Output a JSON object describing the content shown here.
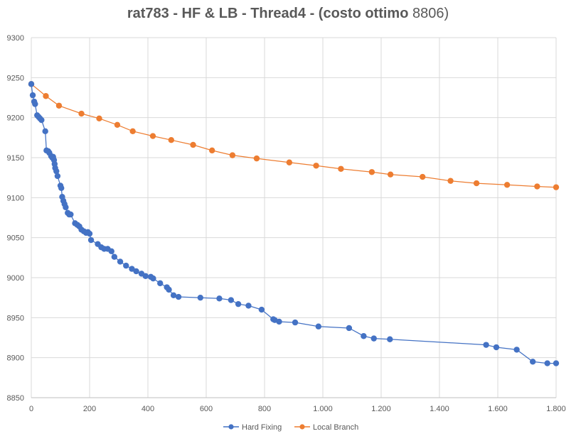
{
  "chart_data": {
    "type": "scatter",
    "title": "rat783 - HF & LB - Thread4 - (costo ottimo",
    "title_value": "8806)",
    "xlabel": "",
    "ylabel": "",
    "xlim": [
      0,
      1800
    ],
    "ylim": [
      8850,
      9300
    ],
    "x_ticks": [
      0,
      200,
      400,
      600,
      800,
      1000,
      1200,
      1400,
      1600,
      1800
    ],
    "x_tick_labels": [
      "0",
      "200",
      "400",
      "600",
      "800",
      "1.000",
      "1.200",
      "1.400",
      "1.600",
      "1.800"
    ],
    "y_ticks": [
      8850,
      8900,
      8950,
      9000,
      9050,
      9100,
      9150,
      9200,
      9250,
      9300
    ],
    "y_tick_labels": [
      "8850",
      "8900",
      "8950",
      "9000",
      "9050",
      "9100",
      "9150",
      "9200",
      "9250",
      "9300"
    ],
    "grid": true,
    "legend_position": "bottom",
    "series": [
      {
        "name": "Hard Fixing",
        "color": "#4472c4",
        "x": [
          0,
          5,
          10,
          13,
          20,
          25,
          30,
          35,
          48,
          52,
          58,
          62,
          68,
          72,
          75,
          78,
          80,
          82,
          86,
          90,
          100,
          103,
          106,
          110,
          114,
          118,
          125,
          130,
          135,
          150,
          158,
          165,
          172,
          180,
          188,
          194,
          200,
          205,
          228,
          240,
          250,
          262,
          275,
          285,
          305,
          325,
          345,
          360,
          378,
          392,
          410,
          418,
          442,
          465,
          472,
          488,
          505,
          580,
          645,
          685,
          710,
          745,
          790,
          830,
          835,
          850,
          905,
          985,
          1090,
          1140,
          1175,
          1230,
          1560,
          1595,
          1665,
          1720,
          1770,
          1800
        ],
        "y": [
          9242,
          9228,
          9220,
          9217,
          9203,
          9201,
          9199,
          9197,
          9183,
          9159,
          9158,
          9156,
          9152,
          9150,
          9151,
          9147,
          9142,
          9137,
          9133,
          9127,
          9115,
          9112,
          9101,
          9096,
          9092,
          9088,
          9081,
          9079,
          9079,
          9068,
          9066,
          9064,
          9060,
          9058,
          9056,
          9057,
          9055,
          9047,
          9042,
          9038,
          9036,
          9036,
          9033,
          9026,
          9020,
          9015,
          9011,
          9008,
          9005,
          9002,
          9001,
          8999,
          8993,
          8988,
          8985,
          8978,
          8976,
          8975,
          8974,
          8972,
          8967,
          8965,
          8960,
          8948,
          8947,
          8945,
          8944,
          8939,
          8937,
          8927,
          8924,
          8923,
          8916,
          8913,
          8910,
          8895,
          8893,
          8893
        ]
      },
      {
        "name": "Local Branch",
        "color": "#ed7d31",
        "x": [
          0,
          50,
          95,
          172,
          233,
          295,
          348,
          417,
          480,
          555,
          620,
          690,
          773,
          885,
          977,
          1062,
          1168,
          1232,
          1342,
          1438,
          1527,
          1632,
          1735,
          1800
        ],
        "y": [
          9242,
          9227,
          9215,
          9205,
          9199,
          9191,
          9183,
          9177,
          9172,
          9166,
          9159,
          9153,
          9149,
          9144,
          9140,
          9136,
          9132,
          9129,
          9126,
          9121,
          9118,
          9116,
          9114,
          9113
        ]
      }
    ]
  }
}
